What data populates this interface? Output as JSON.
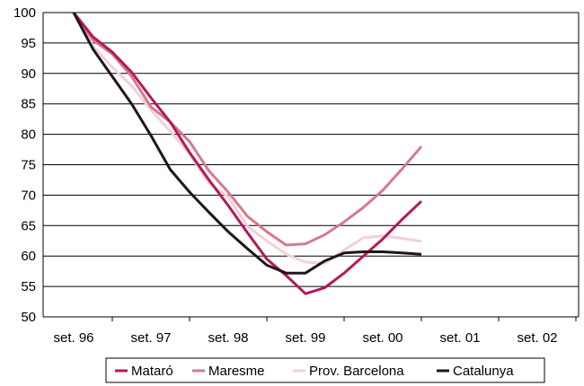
{
  "chart_data": {
    "type": "line",
    "title": "",
    "xlabel": "",
    "ylabel": "",
    "categories": [
      "set. 96",
      "set. 97",
      "set. 98",
      "set. 99",
      "set. 00",
      "set. 01",
      "set. 02"
    ],
    "x_ticks": [
      "set. 96",
      "set. 97",
      "set. 98",
      "set. 99",
      "set. 00",
      "set. 01",
      "set. 02"
    ],
    "y_ticks": [
      "100",
      "95",
      "90",
      "85",
      "80",
      "75",
      "70",
      "65",
      "60",
      "55",
      "50"
    ],
    "ylim": [
      50,
      100
    ],
    "grid": "horizontal",
    "legend_position": "bottom",
    "series": [
      {
        "name": "Mataró",
        "color": "#b5185a",
        "points": [
          [
            0,
            100
          ],
          [
            0.25,
            96
          ],
          [
            0.5,
            93.5
          ],
          [
            0.75,
            90.2
          ],
          [
            1,
            86
          ],
          [
            1.25,
            82
          ],
          [
            1.5,
            77
          ],
          [
            1.75,
            72.5
          ],
          [
            2,
            68.3
          ],
          [
            2.25,
            63.8
          ],
          [
            2.5,
            59.5
          ],
          [
            2.75,
            56.8
          ],
          [
            3,
            53.8
          ],
          [
            3.25,
            54.8
          ],
          [
            3.5,
            57.2
          ],
          [
            3.75,
            60
          ],
          [
            4,
            62.8
          ],
          [
            4.25,
            66
          ],
          [
            4.5,
            69
          ]
        ]
      },
      {
        "name": "Maresme",
        "color": "#d47a8c",
        "points": [
          [
            0,
            100
          ],
          [
            0.25,
            95.5
          ],
          [
            0.5,
            93.2
          ],
          [
            0.75,
            89.5
          ],
          [
            1,
            84.5
          ],
          [
            1.25,
            82
          ],
          [
            1.5,
            78.8
          ],
          [
            1.75,
            74
          ],
          [
            2,
            70.5
          ],
          [
            2.25,
            66.5
          ],
          [
            2.5,
            64
          ],
          [
            2.75,
            61.8
          ],
          [
            3,
            62
          ],
          [
            3.25,
            63.5
          ],
          [
            3.5,
            65.6
          ],
          [
            3.75,
            68
          ],
          [
            4,
            70.8
          ],
          [
            4.25,
            74.3
          ],
          [
            4.5,
            78
          ]
        ]
      },
      {
        "name": "Prov. Barcelona",
        "color": "#f2d0d6",
        "points": [
          [
            0,
            100
          ],
          [
            0.25,
            94.5
          ],
          [
            0.5,
            91
          ],
          [
            0.75,
            88
          ],
          [
            1,
            84
          ],
          [
            1.25,
            80.5
          ],
          [
            1.5,
            76.8
          ],
          [
            1.75,
            72
          ],
          [
            2,
            69.7
          ],
          [
            2.25,
            64.9
          ],
          [
            2.5,
            62.5
          ],
          [
            2.75,
            60.3
          ],
          [
            3,
            59
          ],
          [
            3.25,
            58.8
          ],
          [
            3.5,
            61
          ],
          [
            3.75,
            63
          ],
          [
            4,
            63.3
          ],
          [
            4.25,
            62.9
          ],
          [
            4.5,
            62.4
          ]
        ]
      },
      {
        "name": "Catalunya",
        "color": "#1f1619",
        "points": [
          [
            0,
            100
          ],
          [
            0.25,
            94
          ],
          [
            0.5,
            89.5
          ],
          [
            0.75,
            85
          ],
          [
            1,
            79.8
          ],
          [
            1.25,
            74.2
          ],
          [
            1.5,
            70.5
          ],
          [
            1.75,
            67.2
          ],
          [
            2,
            64
          ],
          [
            2.25,
            61.2
          ],
          [
            2.5,
            58.5
          ],
          [
            2.75,
            57.2
          ],
          [
            3,
            57.2
          ],
          [
            3.25,
            59.2
          ],
          [
            3.5,
            60.5
          ],
          [
            3.75,
            60.7
          ],
          [
            4,
            60.7
          ],
          [
            4.25,
            60.5
          ],
          [
            4.5,
            60.3
          ]
        ]
      }
    ]
  }
}
